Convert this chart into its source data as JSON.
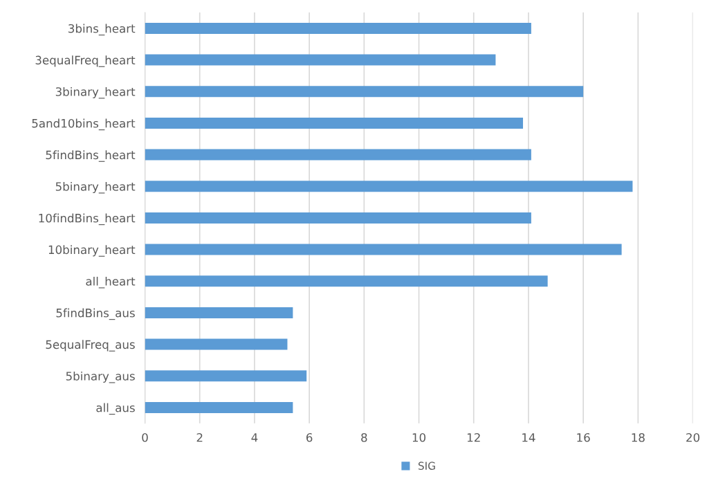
{
  "chart_data": {
    "type": "bar",
    "orientation": "horizontal",
    "categories": [
      "3bins_heart",
      "3equalFreq_heart",
      "3binary_heart",
      "5and10bins_heart",
      "5findBins_heart",
      "5binary_heart",
      "10findBins_heart",
      "10binary_heart",
      "all_heart",
      "5findBins_aus",
      "5equalFreq_aus",
      "5binary_aus",
      "all_aus"
    ],
    "series": [
      {
        "name": "SIG",
        "color": "#5b9bd5",
        "values": [
          14.1,
          12.8,
          16.0,
          13.8,
          14.1,
          17.8,
          14.1,
          17.4,
          14.7,
          5.4,
          5.2,
          5.9,
          5.4
        ]
      }
    ],
    "xlim": [
      0,
      20
    ],
    "xticks": [
      0,
      2,
      4,
      6,
      8,
      10,
      12,
      14,
      16,
      18,
      20
    ],
    "grid": "x",
    "legend": "bottom"
  }
}
